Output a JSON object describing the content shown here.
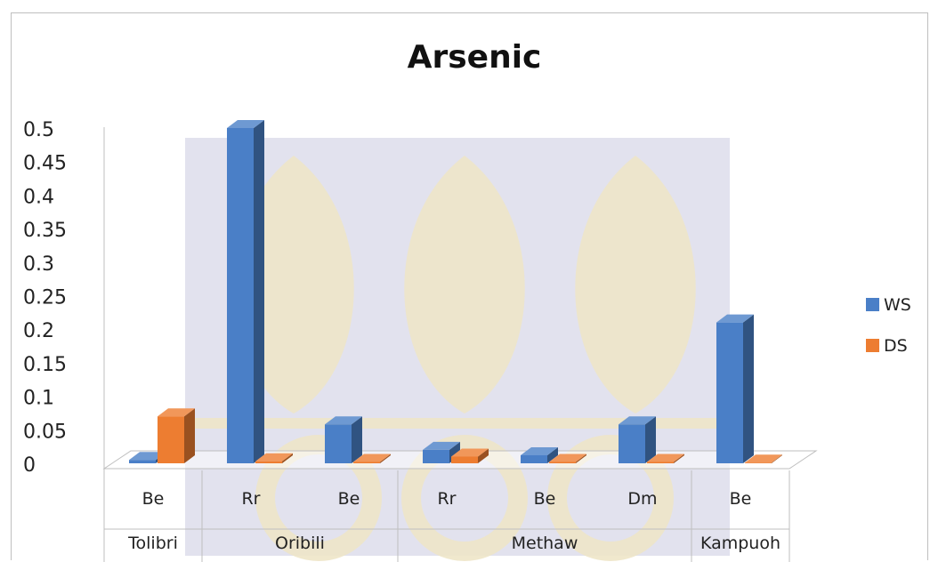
{
  "chart_data": {
    "type": "bar",
    "title": "Arsenic",
    "xlabel": "",
    "ylabel": "",
    "ylim": [
      0,
      0.5
    ],
    "yticks": [
      "0",
      "0.05",
      "0.1",
      "0.15",
      "0.2",
      "0.25",
      "0.3",
      "0.35",
      "0.4",
      "0.45",
      "0.5"
    ],
    "categories": [
      "Be",
      "Rr",
      "Be",
      "Rr",
      "Be",
      "Dm",
      "Be"
    ],
    "groups": [
      {
        "label": "Tolibri",
        "span": 1
      },
      {
        "label": "Oribili",
        "span": 2
      },
      {
        "label": "Methaw",
        "span": 3
      },
      {
        "label": "Kampuoh",
        "span": 1
      }
    ],
    "series": [
      {
        "name": "WS",
        "color": "#4a7fc7",
        "values": [
          0.005,
          0.5,
          0.058,
          0.02,
          0.012,
          0.058,
          0.21
        ]
      },
      {
        "name": "DS",
        "color": "#ed7d31",
        "values": [
          0.07,
          0.003,
          0.002,
          0.01,
          0.002,
          0.002,
          0.001
        ]
      }
    ],
    "legend_position": "right",
    "grid": false
  }
}
